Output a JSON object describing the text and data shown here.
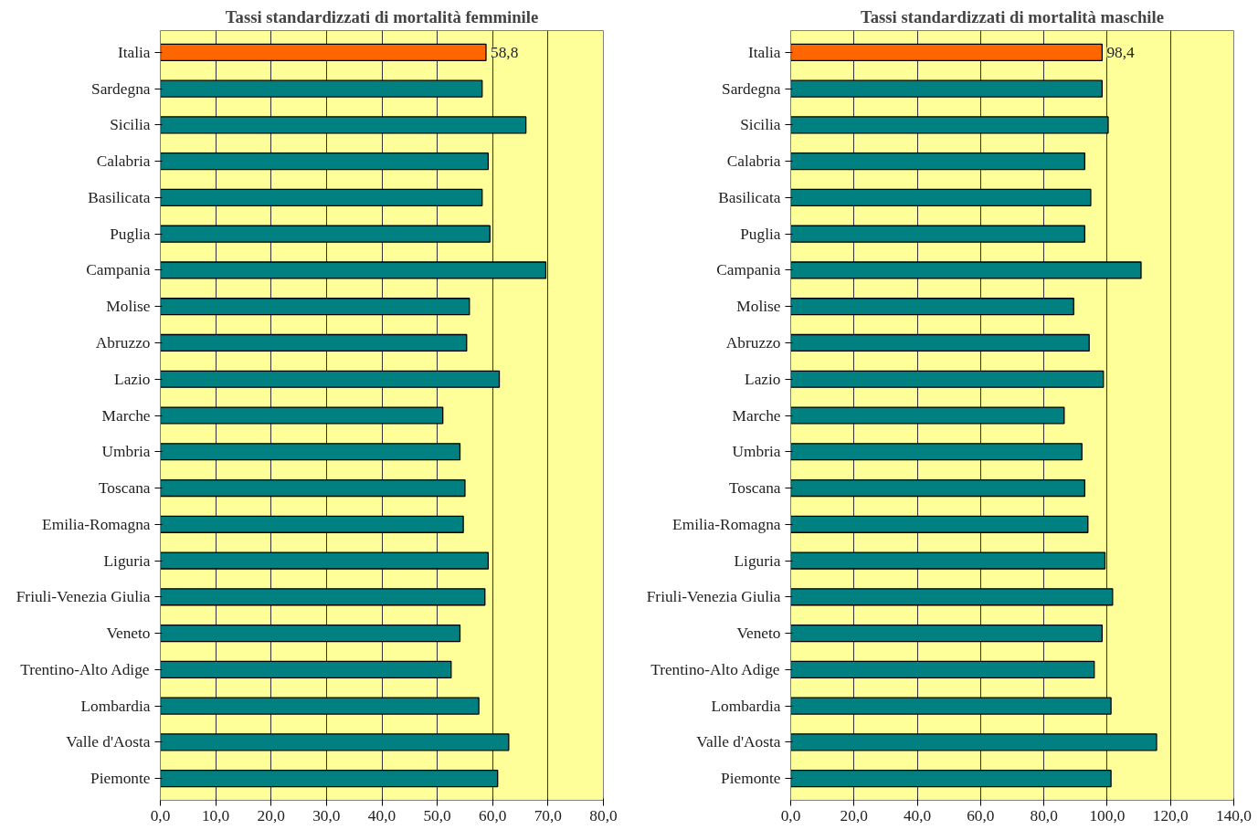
{
  "chart_data": [
    {
      "type": "bar",
      "orientation": "horizontal",
      "title": "Tassi standardizzati di mortalità femminile",
      "categories": [
        "Italia",
        "Sardegna",
        "Sicilia",
        "Calabria",
        "Basilicata",
        "Puglia",
        "Campania",
        "Molise",
        "Abruzzo",
        "Lazio",
        "Marche",
        "Umbria",
        "Toscana",
        "Emilia-Romagna",
        "Liguria",
        "Friuli-Venezia Giulia",
        "Veneto",
        "Trentino-Alto Adige",
        "Lombardia",
        "Valle d'Aosta",
        "Piemonte"
      ],
      "values": [
        58.8,
        58.1,
        66.0,
        59.2,
        58.1,
        59.5,
        69.6,
        55.8,
        55.3,
        61.2,
        51.0,
        54.1,
        55.0,
        54.7,
        59.2,
        58.6,
        54.1,
        52.5,
        57.5,
        62.9,
        60.9
      ],
      "colors": [
        "#ff6600",
        "#008080",
        "#008080",
        "#008080",
        "#008080",
        "#008080",
        "#008080",
        "#008080",
        "#008080",
        "#008080",
        "#008080",
        "#008080",
        "#008080",
        "#008080",
        "#008080",
        "#008080",
        "#008080",
        "#008080",
        "#008080",
        "#008080",
        "#008080"
      ],
      "value_labels": [
        "58,8",
        null,
        null,
        null,
        null,
        null,
        null,
        null,
        null,
        null,
        null,
        null,
        null,
        null,
        null,
        null,
        null,
        null,
        null,
        null,
        null
      ],
      "xlim": [
        0,
        80
      ],
      "xticks": [
        {
          "value": 0,
          "label": "0,0"
        },
        {
          "value": 10,
          "label": "10,0"
        },
        {
          "value": 20,
          "label": "20,0"
        },
        {
          "value": 30,
          "label": "30,0"
        },
        {
          "value": 40,
          "label": "40,0"
        },
        {
          "value": 50,
          "label": "50,0"
        },
        {
          "value": 60,
          "label": "60,0"
        },
        {
          "value": 70,
          "label": "70,0"
        },
        {
          "value": 80,
          "label": "80,0"
        }
      ],
      "grid": "x"
    },
    {
      "type": "bar",
      "orientation": "horizontal",
      "title": "Tassi standardizzati di mortalità maschile",
      "categories": [
        "Italia",
        "Sardegna",
        "Sicilia",
        "Calabria",
        "Basilicata",
        "Puglia",
        "Campania",
        "Molise",
        "Abruzzo",
        "Lazio",
        "Marche",
        "Umbria",
        "Toscana",
        "Emilia-Romagna",
        "Liguria",
        "Friuli-Venezia Giulia",
        "Veneto",
        "Trentino-Alto Adige",
        "Lombardia",
        "Valle d'Aosta",
        "Piemonte"
      ],
      "values": [
        98.4,
        98.4,
        100.3,
        92.9,
        94.8,
        92.9,
        110.7,
        89.4,
        94.3,
        98.8,
        86.4,
        92.0,
        92.9,
        93.9,
        99.3,
        101.7,
        98.4,
        95.9,
        101.2,
        115.6,
        101.2
      ],
      "colors": [
        "#ff6600",
        "#008080",
        "#008080",
        "#008080",
        "#008080",
        "#008080",
        "#008080",
        "#008080",
        "#008080",
        "#008080",
        "#008080",
        "#008080",
        "#008080",
        "#008080",
        "#008080",
        "#008080",
        "#008080",
        "#008080",
        "#008080",
        "#008080",
        "#008080"
      ],
      "value_labels": [
        "98,4",
        null,
        null,
        null,
        null,
        null,
        null,
        null,
        null,
        null,
        null,
        null,
        null,
        null,
        null,
        null,
        null,
        null,
        null,
        null,
        null
      ],
      "xlim": [
        0,
        140
      ],
      "xticks": [
        {
          "value": 0,
          "label": "0,0"
        },
        {
          "value": 20,
          "label": "20,0"
        },
        {
          "value": 40,
          "label": "40,0"
        },
        {
          "value": 60,
          "label": "60,0"
        },
        {
          "value": 80,
          "label": "80,0"
        },
        {
          "value": 100,
          "label": "100,0"
        },
        {
          "value": 120,
          "label": "120,0"
        },
        {
          "value": 140,
          "label": "140,0"
        }
      ],
      "grid": "x"
    }
  ]
}
